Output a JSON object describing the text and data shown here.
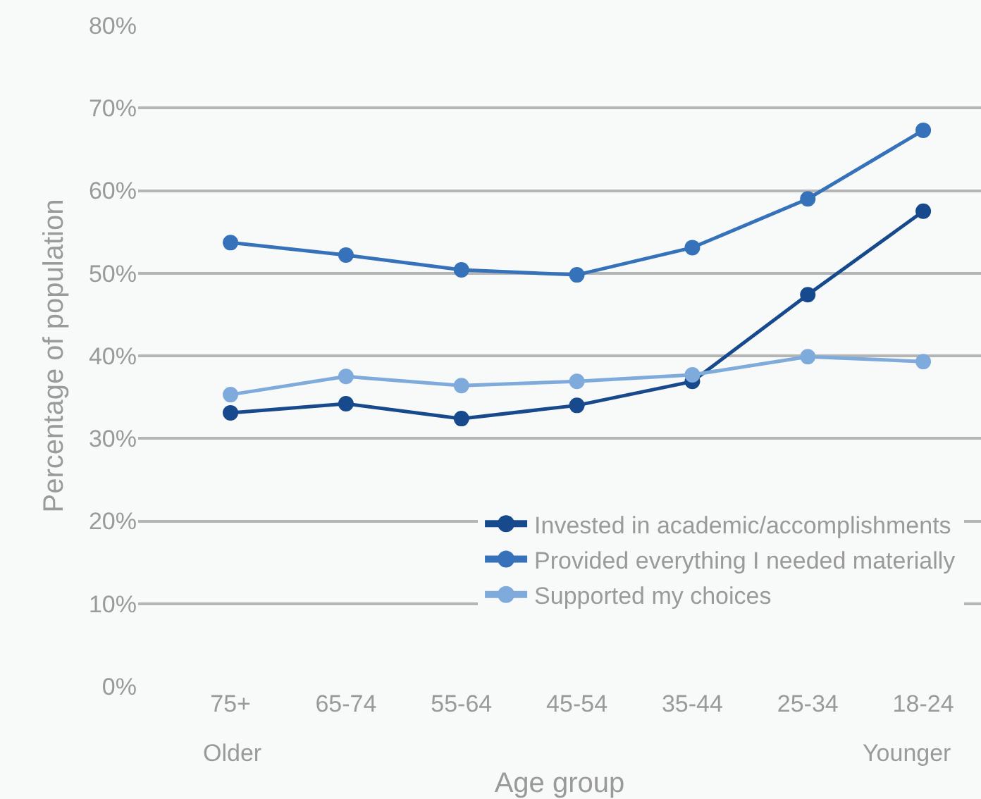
{
  "chart_data": {
    "type": "line",
    "xlabel": "Age group",
    "ylabel": "Percentage of population",
    "categories": [
      "75+",
      "65-74",
      "55-64",
      "45-54",
      "35-44",
      "25-34",
      "18-24"
    ],
    "series": [
      {
        "name": "Invested in academic/accomplishments",
        "color": "#174a8c",
        "values": [
          33.1,
          34.2,
          32.4,
          34.0,
          36.9,
          47.4,
          57.5
        ]
      },
      {
        "name": "Provided everything I needed materially",
        "color": "#3572ba",
        "values": [
          53.7,
          52.2,
          50.4,
          49.8,
          53.1,
          59.0,
          67.3
        ]
      },
      {
        "name": "Supported my choices",
        "color": "#7eabdb",
        "values": [
          35.3,
          37.5,
          36.4,
          36.9,
          37.7,
          39.9,
          39.3
        ]
      }
    ],
    "ylim": [
      0,
      80
    ],
    "yticks": [
      {
        "value": 0,
        "label": "0%"
      },
      {
        "value": 10,
        "label": "10%"
      },
      {
        "value": 20,
        "label": "20%"
      },
      {
        "value": 30,
        "label": "30%"
      },
      {
        "value": 40,
        "label": "40%"
      },
      {
        "value": 50,
        "label": "50%"
      },
      {
        "value": 60,
        "label": "60%"
      },
      {
        "value": 70,
        "label": "70%"
      },
      {
        "value": 80,
        "label": "80%"
      }
    ],
    "annotations": [
      "Older",
      "Younger"
    ],
    "grid": "y",
    "legend": "bottom right",
    "marker": "circle",
    "line_style": "solid"
  }
}
